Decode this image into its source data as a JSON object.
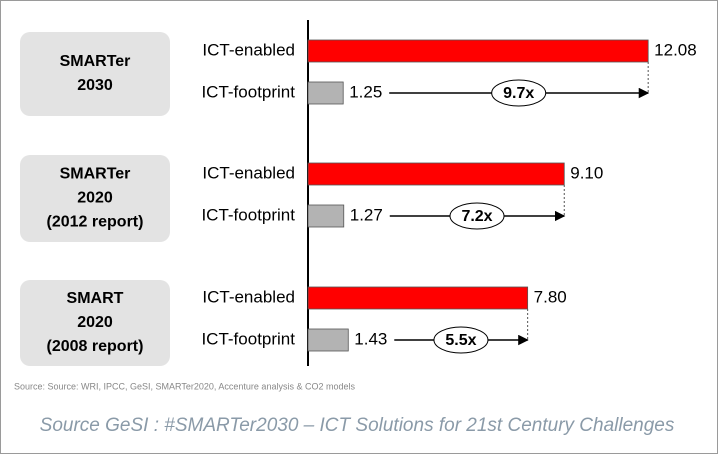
{
  "chart_data": {
    "type": "bar",
    "orientation": "horizontal",
    "categories": [
      [
        "SMARTer",
        "2030"
      ],
      [
        "SMARTer",
        "2020",
        "(2012 report)"
      ],
      [
        "SMART",
        "2020",
        "(2008 report)"
      ]
    ],
    "series": [
      {
        "name": "ICT-enabled",
        "color": "#ff0000",
        "values": [
          12.08,
          9.1,
          7.8
        ],
        "value_labels": [
          "12.08",
          "9.10",
          "7.80"
        ]
      },
      {
        "name": "ICT-footprint",
        "color": "#b3b3b3",
        "values": [
          1.25,
          1.27,
          1.43
        ],
        "value_labels": [
          "1.25",
          "1.27",
          "1.43"
        ]
      }
    ],
    "annotations": [
      "9.7x",
      "7.2x",
      "5.5x"
    ],
    "xlim": [
      0,
      12.5
    ],
    "source": "Source: Source: WRI, IPCC, GeSI, SMARTer2020, Accenture analysis & CO2 models",
    "caption": "Source GeSI :  #SMARTer2030 – ICT Solutions for 21st Century Challenges"
  }
}
